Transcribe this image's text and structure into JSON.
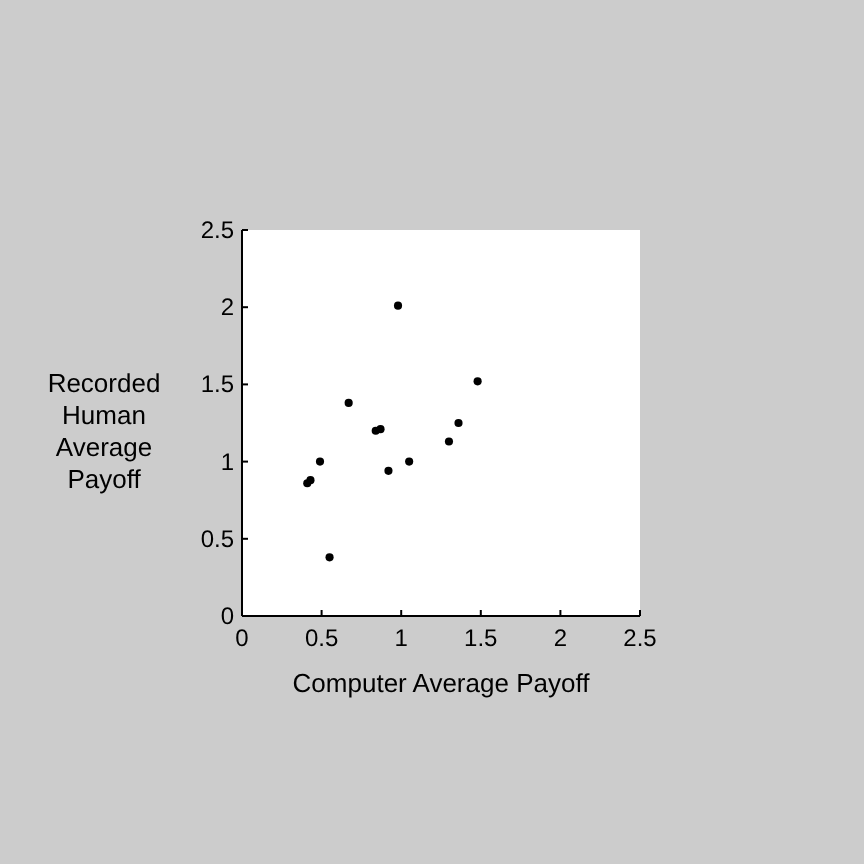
{
  "chart_data": {
    "type": "scatter",
    "xlabel": "Computer Average Payoff",
    "ylabel": "Recorded Human Average Payoff",
    "xlim": [
      0,
      2.5
    ],
    "ylim": [
      0,
      2.5
    ],
    "xticks": [
      0,
      0.5,
      1,
      1.5,
      2,
      2.5
    ],
    "yticks": [
      0,
      0.5,
      1,
      1.5,
      2,
      2.5
    ],
    "grid": false,
    "marker": "circle",
    "series": [
      {
        "color": "#000000",
        "x": [
          0.41,
          0.43,
          0.49,
          0.55,
          0.67,
          0.84,
          0.87,
          0.92,
          0.98,
          1.05,
          1.3,
          1.36,
          1.48
        ],
        "values": [
          0.86,
          0.88,
          1.0,
          0.38,
          1.38,
          1.2,
          1.21,
          0.94,
          2.01,
          1.0,
          1.13,
          1.25,
          1.52
        ]
      }
    ]
  }
}
